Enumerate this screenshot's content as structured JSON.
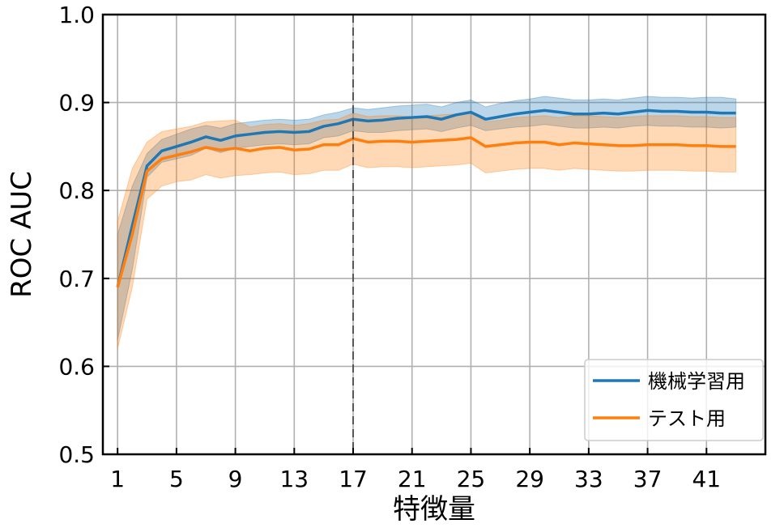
{
  "chart_data": {
    "type": "line",
    "xlabel": "特徴量",
    "ylabel": "ROC AUC",
    "xlim": [
      0,
      45
    ],
    "ylim": [
      0.5,
      1.0
    ],
    "xticks": [
      1,
      5,
      9,
      13,
      17,
      21,
      25,
      29,
      33,
      37,
      41
    ],
    "yticks": [
      "0.5",
      "0.6",
      "0.7",
      "0.8",
      "0.9",
      "1.0"
    ],
    "grid": true,
    "legend_position": "bottom-right",
    "vline_x": 17,
    "x": [
      1,
      2,
      3,
      4,
      5,
      6,
      7,
      8,
      9,
      10,
      11,
      12,
      13,
      14,
      15,
      16,
      17,
      18,
      19,
      20,
      21,
      22,
      23,
      24,
      25,
      26,
      27,
      28,
      29,
      30,
      31,
      32,
      33,
      34,
      35,
      36,
      37,
      38,
      39,
      40,
      41,
      42,
      43
    ],
    "series": [
      {
        "name": "機械学習用",
        "color": "#1f77b4",
        "values": [
          0.69,
          0.76,
          0.828,
          0.845,
          0.85,
          0.855,
          0.861,
          0.857,
          0.862,
          0.864,
          0.866,
          0.867,
          0.866,
          0.867,
          0.873,
          0.876,
          0.881,
          0.879,
          0.88,
          0.882,
          0.883,
          0.884,
          0.881,
          0.886,
          0.889,
          0.881,
          0.884,
          0.887,
          0.889,
          0.891,
          0.889,
          0.887,
          0.887,
          0.888,
          0.887,
          0.889,
          0.891,
          0.89,
          0.89,
          0.889,
          0.889,
          0.888,
          0.888
        ],
        "lower": [
          0.63,
          0.71,
          0.815,
          0.832,
          0.836,
          0.84,
          0.848,
          0.843,
          0.848,
          0.85,
          0.852,
          0.853,
          0.852,
          0.853,
          0.86,
          0.862,
          0.868,
          0.866,
          0.866,
          0.868,
          0.869,
          0.87,
          0.867,
          0.871,
          0.874,
          0.868,
          0.87,
          0.872,
          0.873,
          0.875,
          0.873,
          0.871,
          0.871,
          0.872,
          0.871,
          0.873,
          0.874,
          0.873,
          0.873,
          0.872,
          0.872,
          0.871,
          0.872
        ],
        "upper": [
          0.75,
          0.805,
          0.842,
          0.858,
          0.864,
          0.87,
          0.874,
          0.871,
          0.876,
          0.878,
          0.88,
          0.881,
          0.88,
          0.881,
          0.886,
          0.889,
          0.894,
          0.892,
          0.894,
          0.896,
          0.897,
          0.898,
          0.895,
          0.9,
          0.903,
          0.895,
          0.899,
          0.902,
          0.904,
          0.907,
          0.905,
          0.903,
          0.903,
          0.904,
          0.903,
          0.905,
          0.907,
          0.906,
          0.906,
          0.905,
          0.906,
          0.906,
          0.904
        ]
      },
      {
        "name": "テスト用",
        "color": "#ff7f0e",
        "values": [
          0.69,
          0.75,
          0.822,
          0.836,
          0.84,
          0.844,
          0.849,
          0.846,
          0.848,
          0.845,
          0.848,
          0.849,
          0.846,
          0.847,
          0.852,
          0.852,
          0.859,
          0.855,
          0.856,
          0.856,
          0.855,
          0.856,
          0.857,
          0.858,
          0.86,
          0.85,
          0.852,
          0.854,
          0.855,
          0.855,
          0.852,
          0.854,
          0.853,
          0.852,
          0.851,
          0.851,
          0.852,
          0.852,
          0.852,
          0.851,
          0.851,
          0.85,
          0.85
        ],
        "lower": [
          0.62,
          0.69,
          0.79,
          0.805,
          0.81,
          0.812,
          0.818,
          0.814,
          0.817,
          0.818,
          0.82,
          0.821,
          0.818,
          0.819,
          0.823,
          0.823,
          0.83,
          0.826,
          0.827,
          0.827,
          0.826,
          0.827,
          0.828,
          0.829,
          0.831,
          0.82,
          0.822,
          0.824,
          0.825,
          0.825,
          0.823,
          0.825,
          0.824,
          0.823,
          0.822,
          0.822,
          0.823,
          0.823,
          0.823,
          0.822,
          0.822,
          0.821,
          0.821
        ],
        "upper": [
          0.765,
          0.825,
          0.855,
          0.867,
          0.87,
          0.873,
          0.878,
          0.879,
          0.88,
          0.872,
          0.875,
          0.876,
          0.874,
          0.876,
          0.88,
          0.881,
          0.888,
          0.884,
          0.885,
          0.885,
          0.884,
          0.885,
          0.886,
          0.887,
          0.889,
          0.878,
          0.88,
          0.883,
          0.884,
          0.885,
          0.883,
          0.885,
          0.885,
          0.884,
          0.883,
          0.884,
          0.885,
          0.885,
          0.885,
          0.884,
          0.884,
          0.883,
          0.883
        ]
      }
    ]
  }
}
